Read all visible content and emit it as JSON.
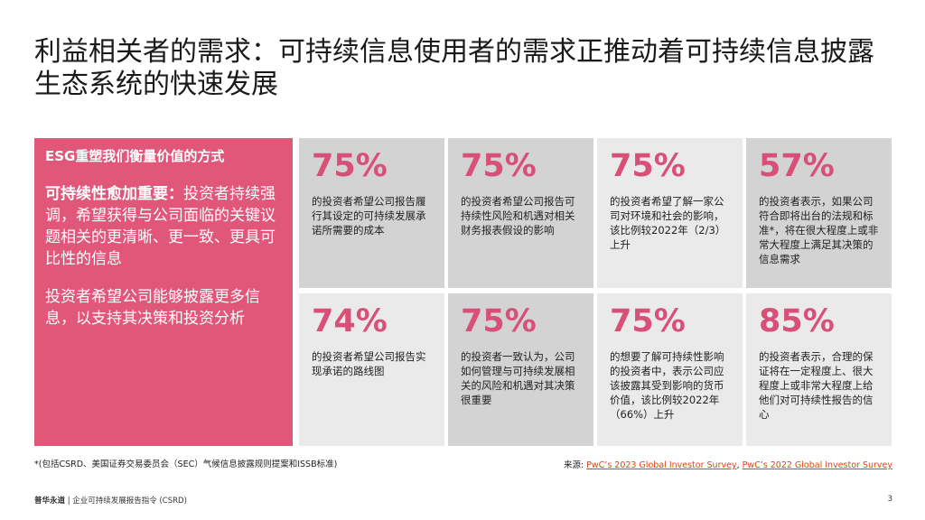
{
  "title": "利益相关者的需求：可持续信息使用者的需求正推动着可持续信息披露生态系统的快速发展",
  "sidebar": {
    "heading": "ESG重塑我们衡量价值的方式",
    "para1_bold": "可持续性愈加重要：",
    "para1_rest": "投资者持续强调，希望获得与公司面临的关键议题相关的更清晰、更一致、更具可比性的信息",
    "para2": "投资者希望公司能够披露更多信息，以支持其决策和投资分析"
  },
  "stats": [
    {
      "pct": "75%",
      "desc": "的投资者希望公司报告履行其设定的可持续发展承诺所需要的成本"
    },
    {
      "pct": "75%",
      "desc": "的投资者希望公司报告可持续性风险和机遇对相关财务报表假设的影响"
    },
    {
      "pct": "75%",
      "desc": "的投资者希望了解一家公司对环境和社会的影响，该比例较2022年（2/3）上升"
    },
    {
      "pct": "57%",
      "desc": "的投资者表示，如果公司符合即将出台的法规和标准*，将在很大程度上或非常大程度上满足其决策的信息需求"
    },
    {
      "pct": "74%",
      "desc": "的投资者希望公司报告实现承诺的路线图"
    },
    {
      "pct": "75%",
      "desc": "的投资者一致认为，公司如何管理与可持续发展相关的风险和机遇对其决策很重要"
    },
    {
      "pct": "75%",
      "desc": "的想要了解可持续性影响的投资者中，表示公司应该披露其受到影响的货币价值，该比例较2022年（66%）上升"
    },
    {
      "pct": "85%",
      "desc": "的投资者表示，合理的保证将在一定程度上、很大程度上或非常大程度上给他们对可持续性报告的信心"
    }
  ],
  "footnote": "*(包括CSRD、美国证券交易委员会（SEC）气候信息披露规则提案和ISSB标准)",
  "source": {
    "label": "来源: ",
    "link1": "PwC’s 2023 Global Investor Survey",
    "sep": ", ",
    "link2": "PwC’s 2022 Global Investor Survey"
  },
  "footer": {
    "brand": "普华永道",
    "text": " | 企业可持续发展报告指令 (CSRD)"
  },
  "page_number": "3",
  "colors": {
    "accent": "#e0577a",
    "stat": "#d85077",
    "card_dark": "#d3d3d4",
    "card_light": "#eaeaeb",
    "link": "#e0401f"
  }
}
